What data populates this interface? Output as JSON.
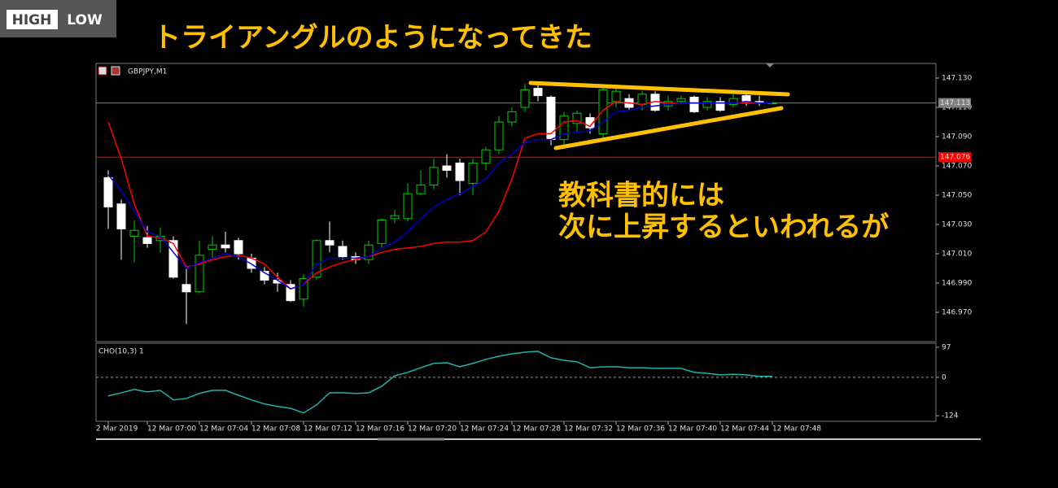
{
  "logo": {
    "left": "HIGH",
    "right": "LOW"
  },
  "header": {
    "title": "トライアングルのようになってきた"
  },
  "annotation": {
    "lines": [
      "教科書的には",
      "次に上昇するといわれるが"
    ]
  },
  "chart_data": [
    {
      "type": "candlestick",
      "label": "GBPJPY,M1",
      "categories": [
        "2 Mar 2019",
        null,
        null,
        "12 Mar 07:00",
        null,
        null,
        null,
        "12 Mar 07:04",
        null,
        null,
        null,
        "12 Mar 07:08",
        null,
        null,
        null,
        "12 Mar 07:12",
        null,
        null,
        null,
        "12 Mar 07:16",
        null,
        null,
        null,
        "12 Mar 07:20",
        null,
        null,
        null,
        "12 Mar 07:24",
        null,
        null,
        null,
        "12 Mar 07:28",
        null,
        null,
        null,
        "12 Mar 07:32",
        null,
        null,
        null,
        "12 Mar 07:36",
        null,
        null,
        null,
        "12 Mar 07:40",
        null,
        null,
        null,
        "12 Mar 07:44",
        null,
        null,
        null,
        "12 Mar 07:48"
      ],
      "open": [
        147.062,
        147.044,
        147.022,
        147.021,
        147.019,
        147.019,
        146.989,
        146.984,
        147.013,
        147.016,
        147.019,
        147.007,
        146.998,
        146.992,
        146.989,
        146.979,
        146.994,
        147.019,
        147.015,
        147.008,
        147.006,
        147.017,
        147.034,
        147.034,
        147.051,
        147.057,
        147.07,
        147.072,
        147.058,
        147.072,
        147.081,
        147.1,
        147.11,
        147.123,
        147.117,
        147.088,
        147.099,
        147.103,
        147.092,
        147.114,
        147.116,
        147.112,
        147.119,
        147.111,
        147.114,
        147.117,
        147.11,
        147.114,
        147.112,
        147.118,
        147.114,
        147.113
      ],
      "high": [
        147.067,
        147.047,
        147.033,
        147.029,
        147.028,
        147.022,
        147.0,
        147.019,
        147.022,
        147.025,
        147.021,
        147.01,
        147.001,
        146.997,
        146.992,
        146.996,
        147.02,
        147.032,
        147.019,
        147.011,
        147.019,
        147.034,
        147.04,
        147.058,
        147.067,
        147.075,
        147.078,
        147.075,
        147.075,
        147.083,
        147.104,
        147.11,
        147.126,
        147.127,
        147.118,
        147.107,
        147.108,
        147.106,
        147.125,
        147.123,
        147.119,
        147.121,
        147.121,
        147.118,
        147.118,
        147.118,
        147.117,
        147.117,
        147.119,
        147.121,
        147.118,
        147.114
      ],
      "low": [
        147.027,
        147.006,
        147.004,
        147.014,
        147.011,
        146.993,
        146.962,
        146.983,
        147.007,
        147.011,
        147.006,
        146.997,
        146.989,
        146.984,
        146.977,
        146.974,
        146.992,
        147.011,
        147.006,
        147.003,
        147.003,
        147.014,
        147.031,
        147.032,
        147.05,
        147.054,
        147.062,
        147.05,
        147.05,
        147.067,
        147.078,
        147.097,
        147.107,
        147.114,
        147.084,
        147.084,
        147.093,
        147.092,
        147.089,
        147.11,
        147.108,
        147.108,
        147.107,
        147.108,
        147.112,
        147.106,
        147.108,
        147.107,
        147.11,
        147.111,
        147.111,
        147.112
      ],
      "close": [
        147.042,
        147.027,
        147.026,
        147.017,
        147.022,
        146.994,
        146.984,
        147.009,
        147.016,
        147.014,
        147.01,
        147.0,
        146.992,
        146.99,
        146.978,
        146.993,
        147.019,
        147.016,
        147.008,
        147.006,
        147.016,
        147.033,
        147.036,
        147.051,
        147.057,
        147.069,
        147.067,
        147.06,
        147.072,
        147.081,
        147.1,
        147.107,
        147.122,
        147.118,
        147.088,
        147.104,
        147.106,
        147.096,
        147.122,
        147.121,
        147.11,
        147.119,
        147.108,
        147.114,
        147.116,
        147.107,
        147.114,
        147.108,
        147.116,
        147.113,
        147.113,
        147.113
      ],
      "up_color": "#00d000",
      "down_color": "#ffffff",
      "series": [
        {
          "color": "#ff0000",
          "values": [
            147.1,
            147.075,
            147.044,
            147.022,
            147.021,
            147.017,
            147.001,
            147.003,
            147.006,
            147.008,
            147.009,
            147.007,
            147.003,
            146.994,
            146.986,
            146.989,
            146.997,
            147.001,
            147.004,
            147.006,
            147.008,
            147.011,
            147.013,
            147.014,
            147.015,
            147.017,
            147.018,
            147.018,
            147.019,
            147.025,
            147.039,
            147.061,
            147.089,
            147.092,
            147.092,
            147.1,
            147.101,
            147.097,
            147.108,
            147.114,
            147.113,
            147.112,
            147.114,
            147.113,
            147.113,
            147.113,
            147.113,
            147.113,
            147.113,
            147.113,
            147.113,
            147.113
          ]
        },
        {
          "color": "#0000c8",
          "values": [
            147.064,
            147.053,
            147.039,
            147.025,
            147.022,
            147.011,
            147.0,
            147.004,
            147.007,
            147.01,
            147.008,
            147.003,
            146.997,
            146.992,
            146.986,
            146.989,
            147.003,
            147.007,
            147.007,
            147.007,
            147.008,
            147.014,
            147.018,
            147.025,
            147.034,
            147.042,
            147.047,
            147.051,
            147.056,
            147.061,
            147.072,
            147.078,
            147.086,
            147.088,
            147.088,
            147.092,
            147.093,
            147.094,
            147.1,
            147.107,
            147.108,
            147.11,
            147.111,
            147.112,
            147.113,
            147.113,
            147.113,
            147.113,
            147.113,
            147.114,
            147.113,
            147.113
          ]
        }
      ],
      "hlines": [
        {
          "value": 147.113,
          "label": "147.113",
          "color": "#808080"
        },
        {
          "value": 147.076,
          "label": "147.076",
          "color": "#ff0000"
        }
      ],
      "ylim": [
        146.95,
        147.14
      ],
      "yticks": [
        {
          "value": 147.13,
          "label": "147.130"
        },
        {
          "value": 147.11,
          "label": "147.110"
        },
        {
          "value": 147.09,
          "label": "147.090"
        },
        {
          "value": 147.07,
          "label": "147.070"
        },
        {
          "value": 147.05,
          "label": "147.050"
        },
        {
          "value": 147.03,
          "label": "147.030"
        },
        {
          "value": 147.01,
          "label": "147.010"
        },
        {
          "value": 146.99,
          "label": "146.990"
        },
        {
          "value": 146.97,
          "label": "146.970"
        }
      ]
    },
    {
      "type": "line",
      "label": "CHO(10,3) 1",
      "series": [
        {
          "color": "#20b2aa",
          "values": [
            -60,
            -50,
            -39,
            -47,
            -42,
            -73,
            -68,
            -52,
            -42,
            -42,
            -58,
            -73,
            -86,
            -94,
            -100,
            -115,
            -89,
            -50,
            -50,
            -52,
            -50,
            -29,
            5,
            16,
            31,
            45,
            47,
            34,
            45,
            58,
            68,
            76,
            81,
            84,
            63,
            55,
            50,
            31,
            34,
            34,
            31,
            31,
            29,
            29,
            29,
            16,
            13,
            8,
            10,
            8,
            3,
            3
          ]
        }
      ],
      "ylim": [
        -142,
        110
      ],
      "yticks": [
        97,
        0,
        -124
      ]
    }
  ]
}
